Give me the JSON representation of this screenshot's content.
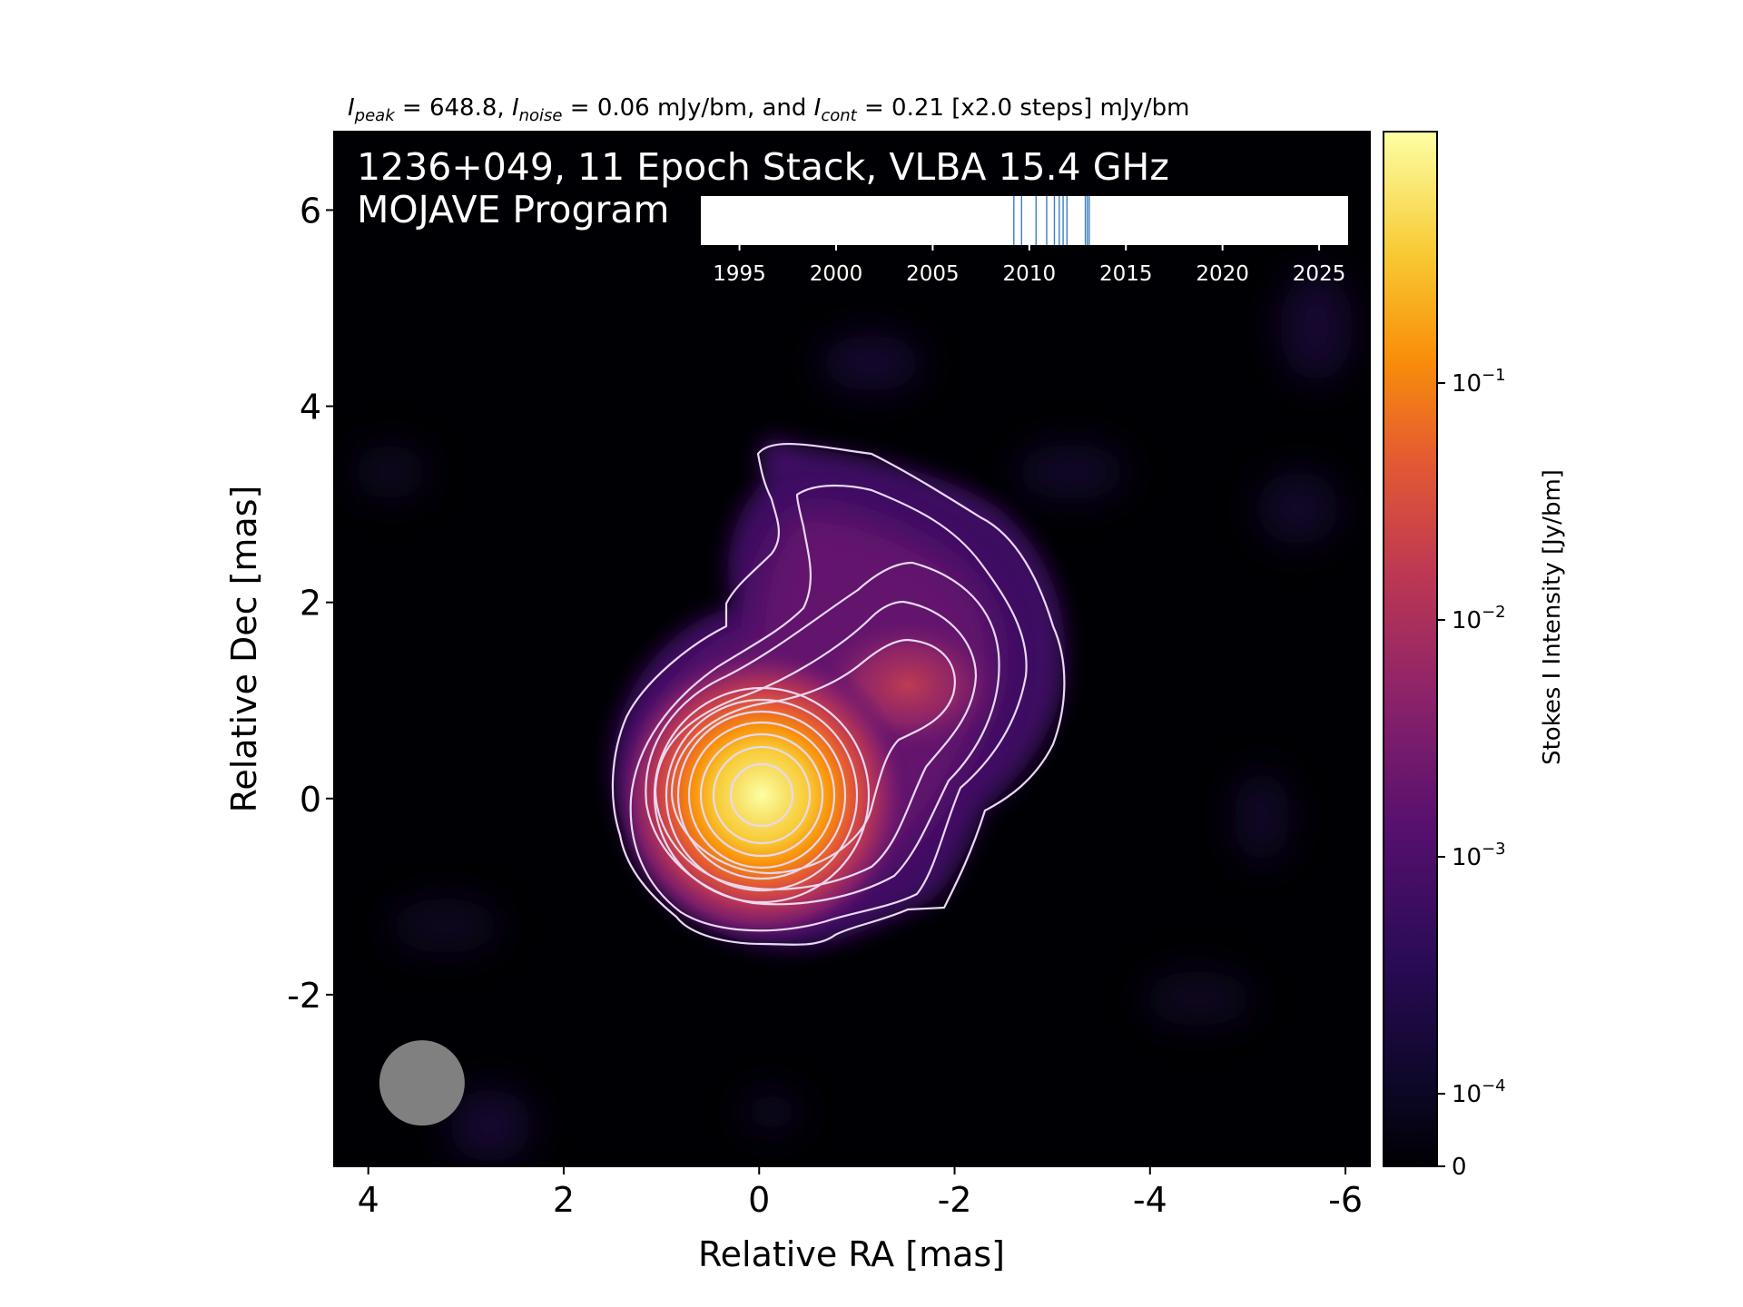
{
  "chart_data": {
    "type": "heatmap",
    "subtitle": {
      "peak_symbol": "I",
      "peak_sub": "peak",
      "peak_value": "648.8",
      "noise_symbol": "I",
      "noise_sub": "noise",
      "noise_value": "0.06 mJy/bm",
      "joiner": ", and",
      "cont_symbol": "I",
      "cont_sub": "cont",
      "cont_value": "0.21 [x2.0 steps] mJy/bm"
    },
    "overlay": {
      "line1": "1236+049, 11 Epoch Stack, VLBA 15.4 GHz",
      "line2": "MOJAVE Program"
    },
    "xlabel": "Relative RA [mas]",
    "ylabel": "Relative Dec [mas]",
    "xlim": [
      4.35,
      -6.25
    ],
    "ylim": [
      -3.75,
      6.8
    ],
    "x_ticks": [
      4,
      2,
      0,
      -2,
      -4,
      -6
    ],
    "x_tick_labels": [
      "4",
      "2",
      "0",
      "-2",
      "-4",
      "-6"
    ],
    "y_ticks": [
      -2,
      0,
      2,
      4,
      6
    ],
    "y_tick_labels": [
      "-2",
      "0",
      "2",
      "4",
      "6"
    ],
    "colorbar": {
      "label": "Stokes I Intensity [Jy/bm]",
      "colormap": "inferno",
      "scale": "log",
      "ticks": [
        {
          "value": 0,
          "label": "0"
        },
        {
          "value": 0.0001,
          "base": "10",
          "exp": "−4"
        },
        {
          "value": 0.001,
          "base": "10",
          "exp": "−3"
        },
        {
          "value": 0.01,
          "base": "10",
          "exp": "−2"
        },
        {
          "value": 0.1,
          "base": "10",
          "exp": "−1"
        }
      ]
    },
    "source": {
      "core": {
        "x": 0.0,
        "y": 0.0,
        "peak_jy": 0.6488
      },
      "jet_component": {
        "x": -1.5,
        "y": 1.15
      }
    },
    "contours": {
      "base_mjy": 0.21,
      "step_factor": 2.0,
      "levels_mjy": [
        0.21,
        0.42,
        0.84,
        1.68,
        3.36,
        6.72,
        13.44,
        26.88,
        53.76,
        107.52,
        215.04,
        430.08
      ],
      "color": "#e8d8f0"
    },
    "beam": {
      "x": 3.45,
      "y": -2.9,
      "diameter_mas": 0.88,
      "color": "#808080"
    },
    "epoch_timeline": {
      "xlim": [
        1993,
        2026.5
      ],
      "ticks": [
        1995,
        2000,
        2005,
        2010,
        2015,
        2020,
        2025
      ],
      "tick_labels": [
        "1995",
        "2000",
        "2005",
        "2010",
        "2015",
        "2020",
        "2025"
      ],
      "epochs": [
        2009.2,
        2009.6,
        2010.35,
        2010.9,
        2011.3,
        2011.55,
        2011.75,
        2011.95,
        2012.9,
        2013.0,
        2013.1
      ],
      "line_color": "#3a7ec0"
    }
  }
}
